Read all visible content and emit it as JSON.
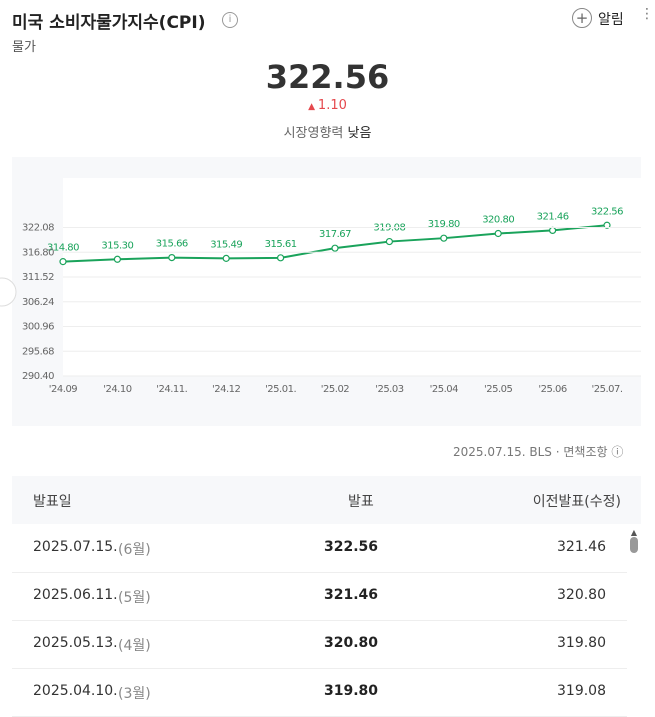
{
  "header": {
    "title": "미국 소비자물가지수(CPI)",
    "category": "물가",
    "alert": "알림"
  },
  "summary": {
    "value": "322.56",
    "change": "1.10",
    "impact_label": "시장영향력",
    "impact": "낮음"
  },
  "chart_data": {
    "type": "line",
    "categories": [
      "'24.09",
      "'24.10",
      "'24.11.",
      "'24.12",
      "'25.01.",
      "'25.02",
      "'25.03",
      "'25.04",
      "'25.05",
      "'25.06",
      "'25.07."
    ],
    "series": [
      {
        "name": "CPI",
        "color": "#1aa35b",
        "values": [
          314.8,
          315.3,
          315.66,
          315.49,
          315.61,
          317.67,
          319.08,
          319.8,
          320.8,
          321.46,
          322.56
        ],
        "value_labels": [
          "314.80",
          "315.30",
          "315.66",
          "315.49",
          "315.61",
          "317.67",
          "319.08",
          "319.80",
          "320.80",
          "321.46",
          "322.56"
        ]
      }
    ],
    "ylim": [
      290.4,
      332.64
    ],
    "yticks": [
      {
        "value": 290.4,
        "label": "290.40"
      },
      295.68,
      300.96,
      306.24,
      311.52,
      {
        "value": 316.8,
        "label": "316.80"
      },
      322.08
    ],
    "grid": true
  },
  "source": {
    "date": "2025.07.15.",
    "agency": "BLS",
    "disclaimer": "면책조항"
  },
  "table": {
    "headers": [
      "발표일",
      "발표",
      "이전발표(수정)"
    ],
    "rows": [
      [
        "2025.07.15.",
        "(6월)",
        "322.56",
        "321.46"
      ],
      [
        "2025.06.11.",
        "(5월)",
        "321.46",
        "320.80"
      ],
      [
        "2025.05.13.",
        "(4월)",
        "320.80",
        "319.80"
      ],
      [
        "2025.04.10.",
        "(3월)",
        "319.80",
        "319.08"
      ]
    ]
  }
}
